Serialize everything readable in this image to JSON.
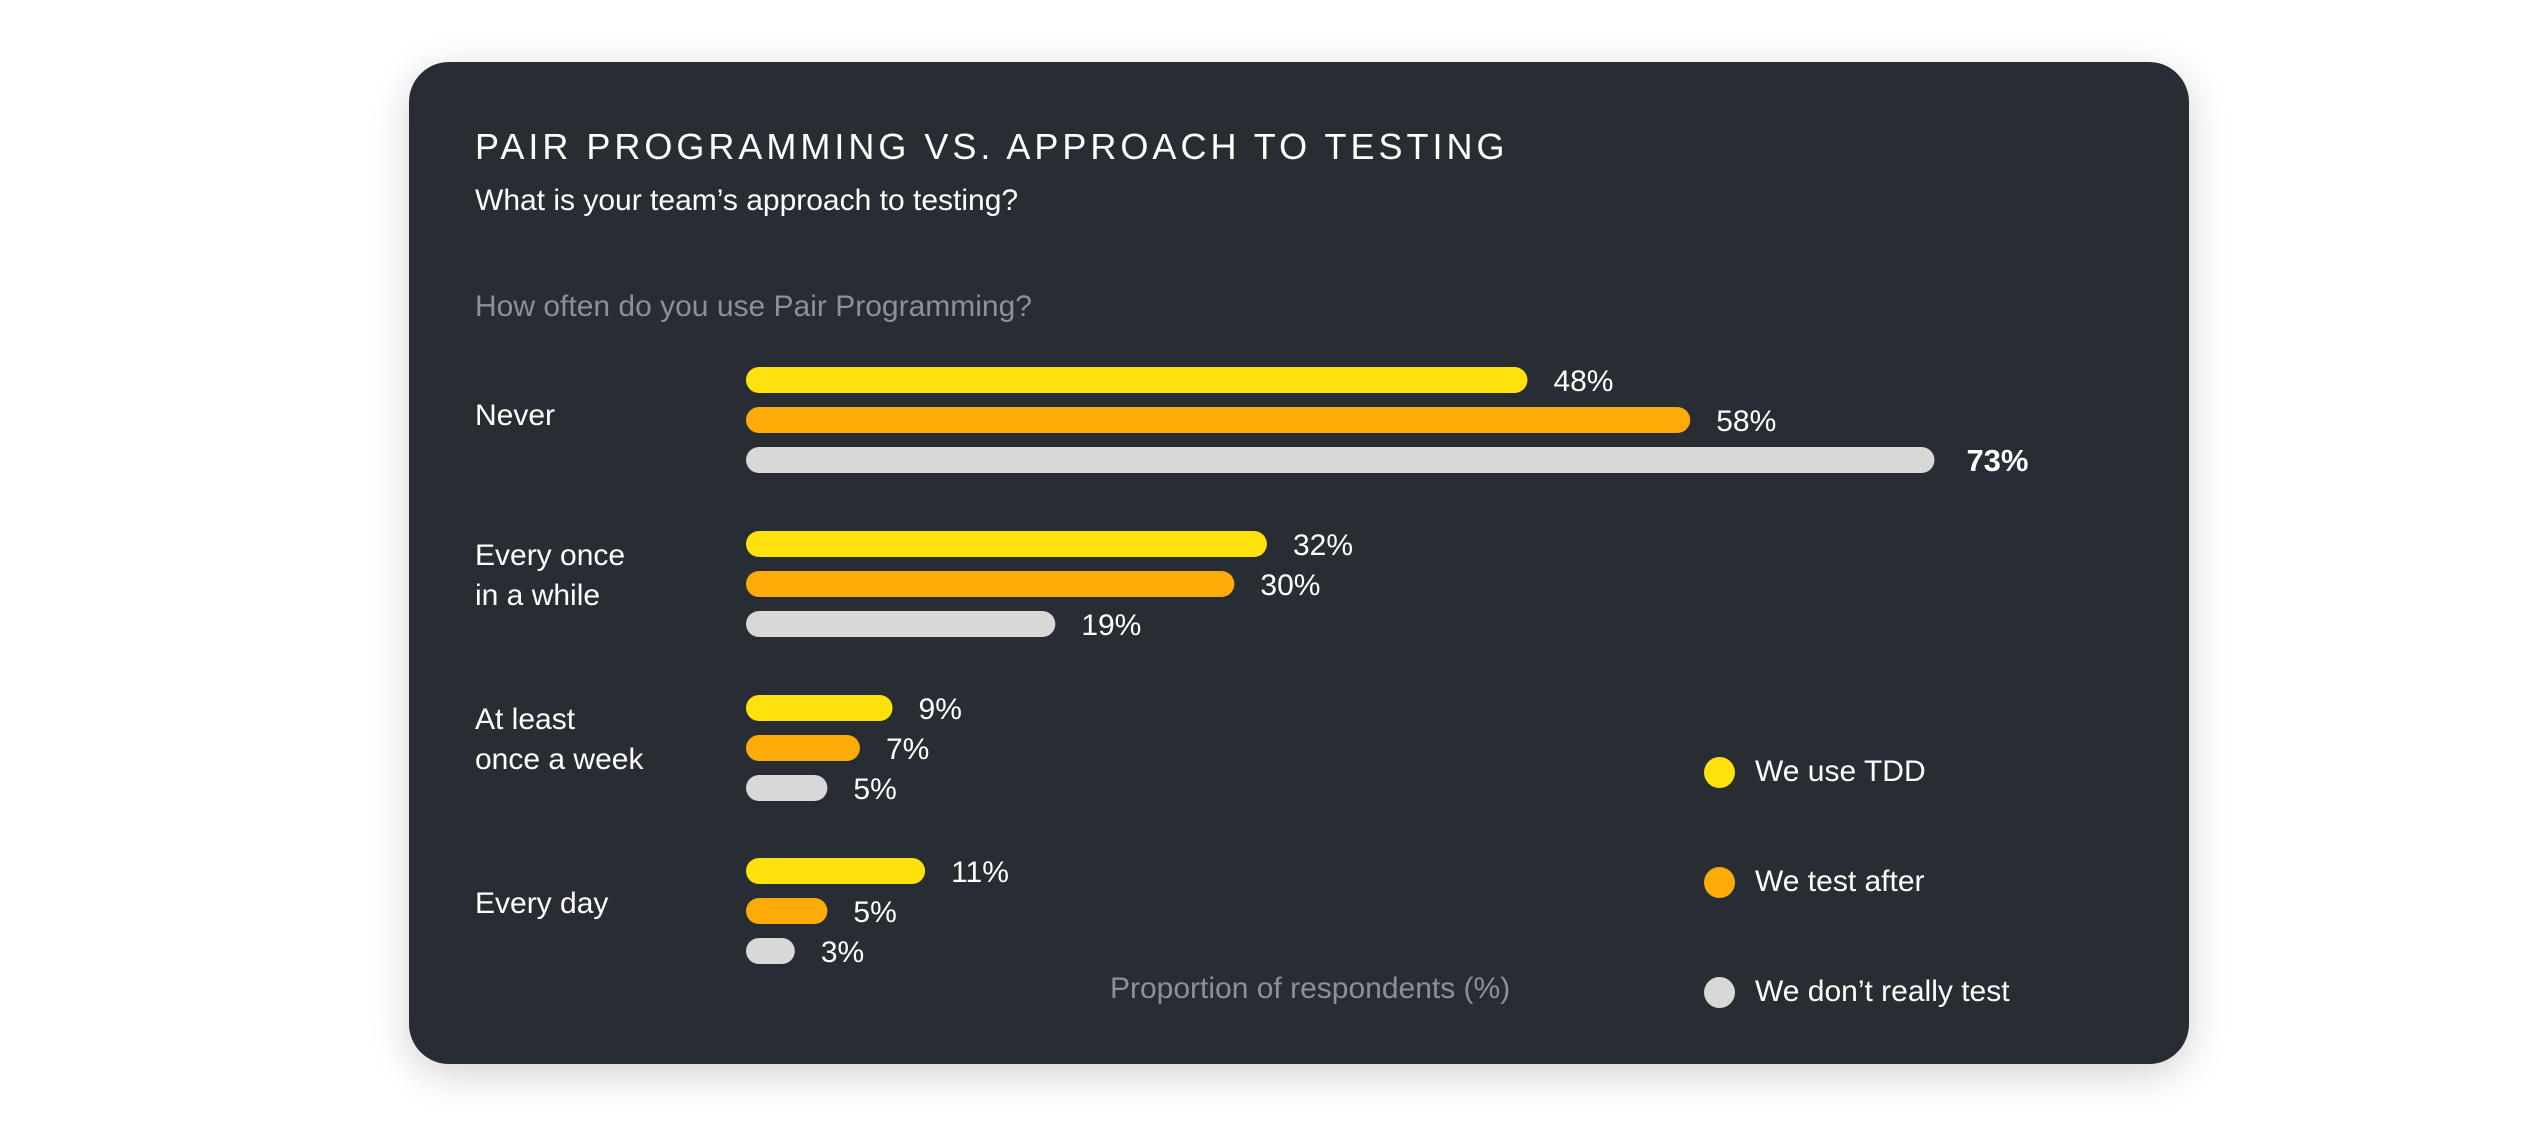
{
  "chart_data": {
    "type": "bar",
    "orientation": "horizontal",
    "title": "PAIR PROGRAMMING VS. APPROACH TO TESTING",
    "subtitle": "What is your team’s approach to testing?",
    "ylabel": "How often do you use Pair Programming?",
    "xlabel": "Proportion of respondents (%)",
    "categories": [
      "Never",
      "Every once\nin a while",
      "At least\nonce a week",
      "Every day"
    ],
    "series": [
      {
        "name": "We use TDD",
        "color": "#ffe20d",
        "values": [
          48,
          32,
          9,
          11
        ]
      },
      {
        "name": "We test after",
        "color": "#fcab07",
        "values": [
          58,
          30,
          7,
          5
        ]
      },
      {
        "name": "We don’t really test",
        "color": "#d8d8d8",
        "values": [
          73,
          19,
          5,
          3
        ]
      }
    ],
    "value_suffix": "%",
    "highlight": {
      "series": 2,
      "category": 0
    },
    "legend_position": "bottom-right",
    "xlim": [
      0,
      73
    ],
    "grid": false
  },
  "card_color": "#282c33"
}
